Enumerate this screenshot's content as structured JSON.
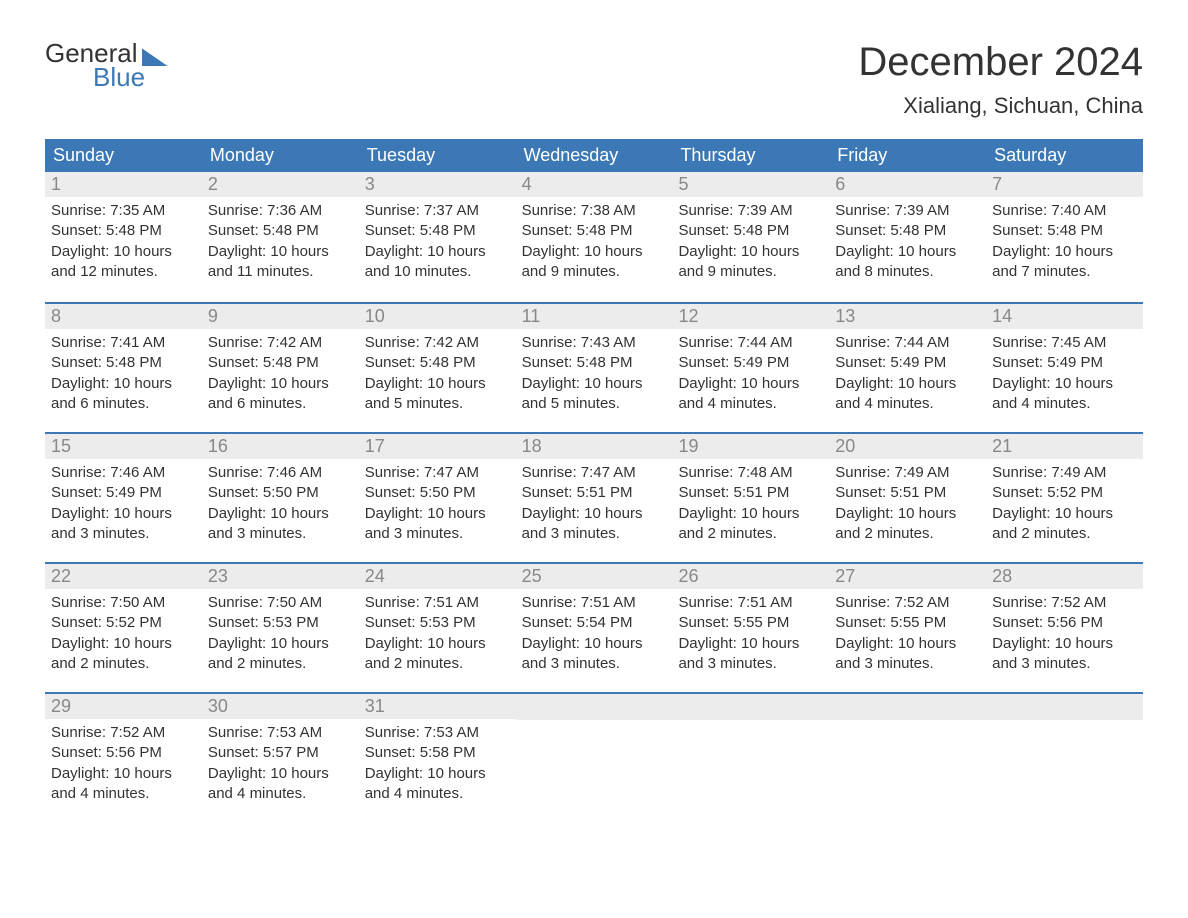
{
  "logo": {
    "line1": "General",
    "line2": "Blue",
    "brand_color": "#3b78b5"
  },
  "title": "December 2024",
  "location": "Xialiang, Sichuan, China",
  "header_bg": "#3b78b5",
  "header_fg": "#ffffff",
  "daynum_bg": "#ececec",
  "daynum_fg": "#888888",
  "border_color": "#3b78b5",
  "text_color": "#333333",
  "day_headers": [
    "Sunday",
    "Monday",
    "Tuesday",
    "Wednesday",
    "Thursday",
    "Friday",
    "Saturday"
  ],
  "weeks": [
    [
      {
        "n": "1",
        "sunrise": "Sunrise: 7:35 AM",
        "sunset": "Sunset: 5:48 PM",
        "daylight1": "Daylight: 10 hours",
        "daylight2": "and 12 minutes."
      },
      {
        "n": "2",
        "sunrise": "Sunrise: 7:36 AM",
        "sunset": "Sunset: 5:48 PM",
        "daylight1": "Daylight: 10 hours",
        "daylight2": "and 11 minutes."
      },
      {
        "n": "3",
        "sunrise": "Sunrise: 7:37 AM",
        "sunset": "Sunset: 5:48 PM",
        "daylight1": "Daylight: 10 hours",
        "daylight2": "and 10 minutes."
      },
      {
        "n": "4",
        "sunrise": "Sunrise: 7:38 AM",
        "sunset": "Sunset: 5:48 PM",
        "daylight1": "Daylight: 10 hours",
        "daylight2": "and 9 minutes."
      },
      {
        "n": "5",
        "sunrise": "Sunrise: 7:39 AM",
        "sunset": "Sunset: 5:48 PM",
        "daylight1": "Daylight: 10 hours",
        "daylight2": "and 9 minutes."
      },
      {
        "n": "6",
        "sunrise": "Sunrise: 7:39 AM",
        "sunset": "Sunset: 5:48 PM",
        "daylight1": "Daylight: 10 hours",
        "daylight2": "and 8 minutes."
      },
      {
        "n": "7",
        "sunrise": "Sunrise: 7:40 AM",
        "sunset": "Sunset: 5:48 PM",
        "daylight1": "Daylight: 10 hours",
        "daylight2": "and 7 minutes."
      }
    ],
    [
      {
        "n": "8",
        "sunrise": "Sunrise: 7:41 AM",
        "sunset": "Sunset: 5:48 PM",
        "daylight1": "Daylight: 10 hours",
        "daylight2": "and 6 minutes."
      },
      {
        "n": "9",
        "sunrise": "Sunrise: 7:42 AM",
        "sunset": "Sunset: 5:48 PM",
        "daylight1": "Daylight: 10 hours",
        "daylight2": "and 6 minutes."
      },
      {
        "n": "10",
        "sunrise": "Sunrise: 7:42 AM",
        "sunset": "Sunset: 5:48 PM",
        "daylight1": "Daylight: 10 hours",
        "daylight2": "and 5 minutes."
      },
      {
        "n": "11",
        "sunrise": "Sunrise: 7:43 AM",
        "sunset": "Sunset: 5:48 PM",
        "daylight1": "Daylight: 10 hours",
        "daylight2": "and 5 minutes."
      },
      {
        "n": "12",
        "sunrise": "Sunrise: 7:44 AM",
        "sunset": "Sunset: 5:49 PM",
        "daylight1": "Daylight: 10 hours",
        "daylight2": "and 4 minutes."
      },
      {
        "n": "13",
        "sunrise": "Sunrise: 7:44 AM",
        "sunset": "Sunset: 5:49 PM",
        "daylight1": "Daylight: 10 hours",
        "daylight2": "and 4 minutes."
      },
      {
        "n": "14",
        "sunrise": "Sunrise: 7:45 AM",
        "sunset": "Sunset: 5:49 PM",
        "daylight1": "Daylight: 10 hours",
        "daylight2": "and 4 minutes."
      }
    ],
    [
      {
        "n": "15",
        "sunrise": "Sunrise: 7:46 AM",
        "sunset": "Sunset: 5:49 PM",
        "daylight1": "Daylight: 10 hours",
        "daylight2": "and 3 minutes."
      },
      {
        "n": "16",
        "sunrise": "Sunrise: 7:46 AM",
        "sunset": "Sunset: 5:50 PM",
        "daylight1": "Daylight: 10 hours",
        "daylight2": "and 3 minutes."
      },
      {
        "n": "17",
        "sunrise": "Sunrise: 7:47 AM",
        "sunset": "Sunset: 5:50 PM",
        "daylight1": "Daylight: 10 hours",
        "daylight2": "and 3 minutes."
      },
      {
        "n": "18",
        "sunrise": "Sunrise: 7:47 AM",
        "sunset": "Sunset: 5:51 PM",
        "daylight1": "Daylight: 10 hours",
        "daylight2": "and 3 minutes."
      },
      {
        "n": "19",
        "sunrise": "Sunrise: 7:48 AM",
        "sunset": "Sunset: 5:51 PM",
        "daylight1": "Daylight: 10 hours",
        "daylight2": "and 2 minutes."
      },
      {
        "n": "20",
        "sunrise": "Sunrise: 7:49 AM",
        "sunset": "Sunset: 5:51 PM",
        "daylight1": "Daylight: 10 hours",
        "daylight2": "and 2 minutes."
      },
      {
        "n": "21",
        "sunrise": "Sunrise: 7:49 AM",
        "sunset": "Sunset: 5:52 PM",
        "daylight1": "Daylight: 10 hours",
        "daylight2": "and 2 minutes."
      }
    ],
    [
      {
        "n": "22",
        "sunrise": "Sunrise: 7:50 AM",
        "sunset": "Sunset: 5:52 PM",
        "daylight1": "Daylight: 10 hours",
        "daylight2": "and 2 minutes."
      },
      {
        "n": "23",
        "sunrise": "Sunrise: 7:50 AM",
        "sunset": "Sunset: 5:53 PM",
        "daylight1": "Daylight: 10 hours",
        "daylight2": "and 2 minutes."
      },
      {
        "n": "24",
        "sunrise": "Sunrise: 7:51 AM",
        "sunset": "Sunset: 5:53 PM",
        "daylight1": "Daylight: 10 hours",
        "daylight2": "and 2 minutes."
      },
      {
        "n": "25",
        "sunrise": "Sunrise: 7:51 AM",
        "sunset": "Sunset: 5:54 PM",
        "daylight1": "Daylight: 10 hours",
        "daylight2": "and 3 minutes."
      },
      {
        "n": "26",
        "sunrise": "Sunrise: 7:51 AM",
        "sunset": "Sunset: 5:55 PM",
        "daylight1": "Daylight: 10 hours",
        "daylight2": "and 3 minutes."
      },
      {
        "n": "27",
        "sunrise": "Sunrise: 7:52 AM",
        "sunset": "Sunset: 5:55 PM",
        "daylight1": "Daylight: 10 hours",
        "daylight2": "and 3 minutes."
      },
      {
        "n": "28",
        "sunrise": "Sunrise: 7:52 AM",
        "sunset": "Sunset: 5:56 PM",
        "daylight1": "Daylight: 10 hours",
        "daylight2": "and 3 minutes."
      }
    ],
    [
      {
        "n": "29",
        "sunrise": "Sunrise: 7:52 AM",
        "sunset": "Sunset: 5:56 PM",
        "daylight1": "Daylight: 10 hours",
        "daylight2": "and 4 minutes."
      },
      {
        "n": "30",
        "sunrise": "Sunrise: 7:53 AM",
        "sunset": "Sunset: 5:57 PM",
        "daylight1": "Daylight: 10 hours",
        "daylight2": "and 4 minutes."
      },
      {
        "n": "31",
        "sunrise": "Sunrise: 7:53 AM",
        "sunset": "Sunset: 5:58 PM",
        "daylight1": "Daylight: 10 hours",
        "daylight2": "and 4 minutes."
      },
      {
        "n": "",
        "empty": true
      },
      {
        "n": "",
        "empty": true
      },
      {
        "n": "",
        "empty": true
      },
      {
        "n": "",
        "empty": true
      }
    ]
  ]
}
